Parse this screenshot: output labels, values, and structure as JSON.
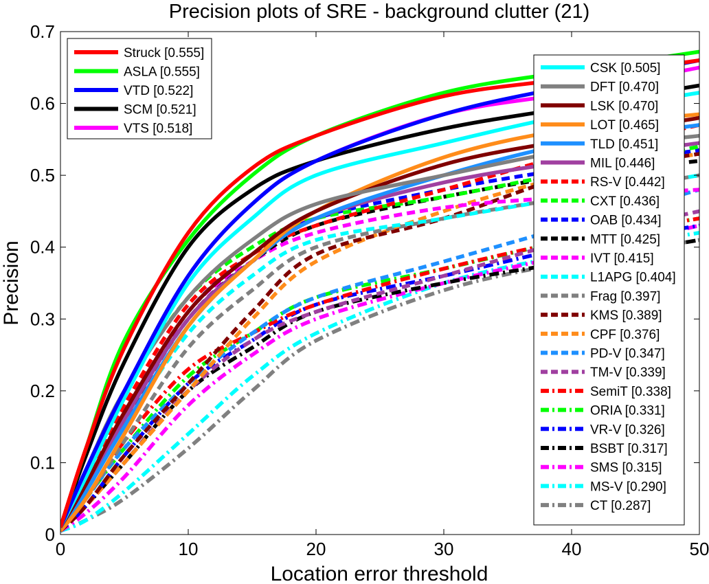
{
  "chart_data": {
    "type": "line",
    "title": "Precision plots of SRE - background clutter (21)",
    "xlabel": "Location error threshold",
    "ylabel": "Precision",
    "xlim": [
      0,
      50
    ],
    "ylim": [
      0,
      0.7
    ],
    "x_ticks": [
      "0",
      "10",
      "20",
      "30",
      "40",
      "50"
    ],
    "y_ticks": [
      "0",
      "0.1",
      "0.2",
      "0.3",
      "0.4",
      "0.5",
      "0.6",
      "0.7"
    ],
    "x": [
      0,
      2,
      5,
      10,
      15,
      20,
      30,
      40,
      50
    ],
    "legends": [
      {
        "placement": "top-left",
        "entries": [
          "Struck [0.555]",
          "ASLA [0.555]",
          "VTD [0.522]",
          "SCM [0.521]",
          "VTS [0.518]"
        ]
      },
      {
        "placement": "right",
        "entries": [
          "CSK [0.505]",
          "DFT [0.470]",
          "LSK [0.470]",
          "LOT [0.465]",
          "TLD [0.451]",
          "MIL [0.446]",
          "RS-V [0.442]",
          "CXT [0.436]",
          "OAB [0.434]",
          "MTT [0.425]",
          "IVT [0.415]",
          "L1APG [0.404]",
          "Frag [0.397]",
          "KMS [0.389]",
          "CPF [0.376]",
          "PD-V [0.347]",
          "TM-V [0.339]",
          "SemiT [0.338]",
          "ORIA [0.331]",
          "VR-V [0.326]",
          "BSBT [0.317]",
          "SMS [0.315]",
          "MS-V [0.290]",
          "CT [0.287]"
        ]
      }
    ],
    "series": [
      {
        "name": "Struck [0.555]",
        "color": "#ff0000",
        "style": "solid",
        "values": [
          0.01,
          0.12,
          0.26,
          0.42,
          0.51,
          0.555,
          0.61,
          0.635,
          0.66
        ]
      },
      {
        "name": "ASLA [0.555]",
        "color": "#00ff00",
        "style": "solid",
        "values": [
          0.01,
          0.12,
          0.27,
          0.41,
          0.5,
          0.555,
          0.615,
          0.645,
          0.672
        ]
      },
      {
        "name": "VTD [0.522]",
        "color": "#0000ff",
        "style": "solid",
        "values": [
          0.01,
          0.09,
          0.2,
          0.36,
          0.46,
          0.52,
          0.585,
          0.625,
          0.66
        ]
      },
      {
        "name": "SCM [0.521]",
        "color": "#000000",
        "style": "solid",
        "values": [
          0.01,
          0.11,
          0.24,
          0.4,
          0.48,
          0.52,
          0.565,
          0.595,
          0.625
        ]
      },
      {
        "name": "VTS [0.518]",
        "color": "#ff00ff",
        "style": "solid",
        "values": [
          0.01,
          0.09,
          0.2,
          0.36,
          0.46,
          0.52,
          0.585,
          0.615,
          0.65
        ]
      },
      {
        "name": "CSK [0.505]",
        "color": "#00ffff",
        "style": "solid",
        "values": [
          0.01,
          0.08,
          0.19,
          0.35,
          0.44,
          0.5,
          0.545,
          0.585,
          0.615
        ]
      },
      {
        "name": "DFT [0.470]",
        "color": "#808080",
        "style": "solid",
        "values": [
          0.01,
          0.09,
          0.2,
          0.33,
          0.41,
          0.46,
          0.5,
          0.535,
          0.555
        ]
      },
      {
        "name": "LSK [0.470]",
        "color": "#800000",
        "style": "solid",
        "values": [
          0.01,
          0.07,
          0.17,
          0.31,
          0.39,
          0.45,
          0.515,
          0.55,
          0.58
        ]
      },
      {
        "name": "LOT [0.465]",
        "color": "#ff8c1a",
        "style": "solid",
        "values": [
          0.005,
          0.05,
          0.14,
          0.29,
          0.38,
          0.45,
          0.525,
          0.565,
          0.585
        ]
      },
      {
        "name": "TLD [0.451]",
        "color": "#1e90ff",
        "style": "solid",
        "values": [
          0.005,
          0.06,
          0.15,
          0.29,
          0.38,
          0.44,
          0.5,
          0.545,
          0.57
        ]
      },
      {
        "name": "MIL [0.446]",
        "color": "#a040a0",
        "style": "solid",
        "values": [
          0.005,
          0.06,
          0.16,
          0.3,
          0.38,
          0.44,
          0.49,
          0.52,
          0.545
        ]
      },
      {
        "name": "RS-V [0.442]",
        "color": "#ff0000",
        "style": "dash",
        "values": [
          0.01,
          0.08,
          0.18,
          0.32,
          0.39,
          0.43,
          0.48,
          0.53,
          0.57
        ]
      },
      {
        "name": "CXT [0.436]",
        "color": "#00ff00",
        "style": "dash",
        "values": [
          0.01,
          0.09,
          0.2,
          0.33,
          0.4,
          0.44,
          0.47,
          0.505,
          0.54
        ]
      },
      {
        "name": "OAB [0.434]",
        "color": "#0000ff",
        "style": "dash",
        "values": [
          0.01,
          0.07,
          0.17,
          0.31,
          0.39,
          0.44,
          0.48,
          0.51,
          0.535
        ]
      },
      {
        "name": "MTT [0.425]",
        "color": "#000000",
        "style": "dash",
        "values": [
          0.01,
          0.07,
          0.16,
          0.3,
          0.38,
          0.43,
          0.47,
          0.5,
          0.52
        ]
      },
      {
        "name": "IVT [0.415]",
        "color": "#ff00ff",
        "style": "dash",
        "values": [
          0.01,
          0.06,
          0.16,
          0.31,
          0.38,
          0.42,
          0.455,
          0.47,
          0.48
        ]
      },
      {
        "name": "L1APG [0.404]",
        "color": "#00ffff",
        "style": "dash",
        "values": [
          0.01,
          0.06,
          0.15,
          0.28,
          0.36,
          0.41,
          0.44,
          0.47,
          0.5
        ]
      },
      {
        "name": "Frag [0.397]",
        "color": "#808080",
        "style": "dash",
        "values": [
          0.01,
          0.05,
          0.13,
          0.26,
          0.34,
          0.4,
          0.44,
          0.47,
          0.5
        ]
      },
      {
        "name": "KMS [0.389]",
        "color": "#800000",
        "style": "dash",
        "values": [
          0.005,
          0.04,
          0.11,
          0.21,
          0.31,
          0.39,
          0.44,
          0.5,
          0.53
        ]
      },
      {
        "name": "CPF [0.376]",
        "color": "#ff8c1a",
        "style": "dash",
        "values": [
          0.005,
          0.04,
          0.1,
          0.2,
          0.3,
          0.38,
          0.45,
          0.5,
          0.53
        ]
      },
      {
        "name": "PD-V [0.347]",
        "color": "#1e90ff",
        "style": "dash",
        "values": [
          0.005,
          0.05,
          0.12,
          0.21,
          0.28,
          0.33,
          0.38,
          0.43,
          0.48
        ]
      },
      {
        "name": "TM-V [0.339]",
        "color": "#a040a0",
        "style": "dash",
        "values": [
          0.005,
          0.04,
          0.1,
          0.2,
          0.27,
          0.31,
          0.36,
          0.41,
          0.45
        ]
      },
      {
        "name": "SemiT [0.338]",
        "color": "#ff0000",
        "style": "dashdot",
        "values": [
          0.005,
          0.05,
          0.13,
          0.23,
          0.28,
          0.32,
          0.37,
          0.41,
          0.44
        ]
      },
      {
        "name": "ORIA [0.331]",
        "color": "#00ff00",
        "style": "dashdot",
        "values": [
          0.005,
          0.05,
          0.12,
          0.22,
          0.28,
          0.33,
          0.37,
          0.41,
          0.44
        ]
      },
      {
        "name": "VR-V [0.326]",
        "color": "#0000ff",
        "style": "dashdot",
        "values": [
          0.005,
          0.04,
          0.11,
          0.21,
          0.27,
          0.32,
          0.36,
          0.4,
          0.43
        ]
      },
      {
        "name": "BSBT [0.317]",
        "color": "#000000",
        "style": "dashdot",
        "values": [
          0.005,
          0.04,
          0.1,
          0.2,
          0.26,
          0.31,
          0.35,
          0.38,
          0.41
        ]
      },
      {
        "name": "SMS [0.315]",
        "color": "#ff00ff",
        "style": "dashdot",
        "values": [
          0.005,
          0.03,
          0.08,
          0.18,
          0.25,
          0.3,
          0.35,
          0.39,
          0.43
        ]
      },
      {
        "name": "MS-V [0.290]",
        "color": "#00ffff",
        "style": "dashdot",
        "values": [
          0.005,
          0.02,
          0.06,
          0.14,
          0.22,
          0.28,
          0.35,
          0.39,
          0.42
        ]
      },
      {
        "name": "CT [0.287]",
        "color": "#808080",
        "style": "dashdot",
        "values": [
          0.005,
          0.02,
          0.05,
          0.12,
          0.2,
          0.27,
          0.34,
          0.38,
          0.41
        ]
      }
    ]
  }
}
